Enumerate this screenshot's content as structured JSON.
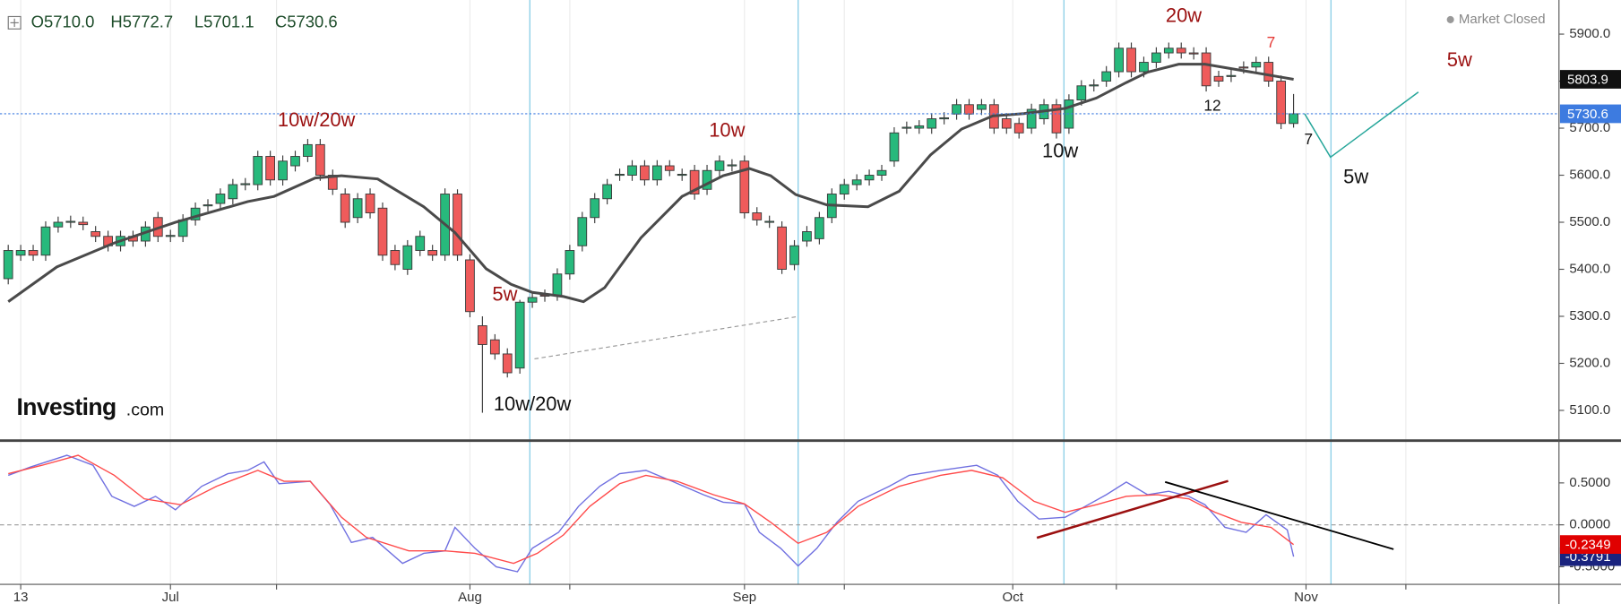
{
  "chart_data": [
    {
      "type": "candlestick",
      "header": [
        "O5710.0",
        "H5772.7",
        "L5701.1",
        "C5730.6"
      ],
      "status": "Market Closed",
      "watermark": [
        "Investing",
        ".com"
      ],
      "up_color": "#27b97c",
      "down_color": "#ef5b5b",
      "xlim": [
        -0.66,
        124.27
      ],
      "xticks": [
        {
          "value": 1,
          "label": "13"
        },
        {
          "value": 13,
          "label": "Jul"
        },
        {
          "value": 37,
          "label": "Aug"
        },
        {
          "value": 59,
          "label": "Sep"
        },
        {
          "value": 80.5,
          "label": "Oct"
        },
        {
          "value": 104,
          "label": "Nov"
        }
      ],
      "xminor": [
        21.5,
        45,
        67,
        88.8,
        112
      ],
      "vlines": [
        41.8,
        63.3,
        84.6,
        106
      ],
      "vline_color": "#8fd0e8",
      "ylim": [
        5038,
        5972.5
      ],
      "yticks": [
        {
          "value": 5100,
          "label": "5100.0"
        },
        {
          "value": 5200,
          "label": "5200.0"
        },
        {
          "value": 5300,
          "label": "5300.0"
        },
        {
          "value": 5400,
          "label": "5400.0"
        },
        {
          "value": 5500,
          "label": "5500.0"
        },
        {
          "value": 5600,
          "label": "5600.0"
        },
        {
          "value": 5700,
          "label": "5700.0"
        },
        {
          "value": 5800,
          "label": "5800.0"
        },
        {
          "value": 5900,
          "label": "5900.0"
        }
      ],
      "open": [
        5380,
        5430,
        5440,
        5430,
        5490,
        5500,
        5500,
        5480,
        5470,
        5450,
        5470,
        5460,
        5510,
        5470,
        5470,
        5505,
        5535,
        5540,
        5550,
        5580,
        5580,
        5640,
        5590,
        5620,
        5640,
        5665,
        5600,
        5560,
        5510,
        5560,
        5530,
        5440,
        5400,
        5440,
        5440,
        5430,
        5560,
        5420,
        5280,
        5250,
        5220,
        5190,
        5330,
        5345,
        5345,
        5390,
        5450,
        5510,
        5550,
        5600,
        5600,
        5620,
        5590,
        5620,
        5600,
        5610,
        5570,
        5610,
        5620,
        5630,
        5520,
        5500,
        5490,
        5410,
        5460,
        5465,
        5510,
        5560,
        5580,
        5590,
        5600,
        5630,
        5700,
        5700,
        5700,
        5720,
        5730,
        5750,
        5740,
        5750,
        5720,
        5710,
        5700,
        5720,
        5750,
        5700,
        5760,
        5790,
        5800,
        5820,
        5870,
        5820,
        5840,
        5860,
        5870,
        5860,
        5860,
        5810,
        5810,
        5830,
        5830,
        5840,
        5800,
        5710
      ],
      "high": [
        5452,
        5452,
        5452,
        5502,
        5512,
        5514,
        5512,
        5492,
        5482,
        5482,
        5482,
        5502,
        5522,
        5484,
        5517,
        5542,
        5549,
        5572,
        5592,
        5594,
        5652,
        5652,
        5642,
        5652,
        5677,
        5677,
        5612,
        5572,
        5562,
        5572,
        5542,
        5452,
        5462,
        5482,
        5452,
        5572,
        5570,
        5432,
        5300,
        5262,
        5232,
        5335,
        5352,
        5357,
        5402,
        5452,
        5522,
        5562,
        5592,
        5614,
        5632,
        5632,
        5632,
        5632,
        5614,
        5622,
        5622,
        5642,
        5634,
        5642,
        5532,
        5514,
        5502,
        5462,
        5492,
        5522,
        5572,
        5592,
        5602,
        5612,
        5622,
        5702,
        5714,
        5717,
        5732,
        5734,
        5762,
        5762,
        5762,
        5762,
        5732,
        5722,
        5752,
        5762,
        5762,
        5772,
        5802,
        5804,
        5832,
        5882,
        5882,
        5852,
        5872,
        5882,
        5882,
        5872,
        5872,
        5822,
        5824,
        5842,
        5852,
        5852,
        5812,
        5772.7
      ],
      "low": [
        5368,
        5418,
        5418,
        5418,
        5478,
        5488,
        5483,
        5458,
        5438,
        5438,
        5448,
        5448,
        5458,
        5458,
        5458,
        5493,
        5523,
        5528,
        5538,
        5568,
        5568,
        5578,
        5578,
        5608,
        5628,
        5588,
        5558,
        5488,
        5498,
        5508,
        5418,
        5398,
        5388,
        5428,
        5418,
        5418,
        5418,
        5298,
        5095,
        5208,
        5170,
        5178,
        5318,
        5331,
        5333,
        5378,
        5438,
        5498,
        5538,
        5588,
        5588,
        5578,
        5578,
        5598,
        5588,
        5548,
        5558,
        5598,
        5608,
        5508,
        5493,
        5488,
        5390,
        5398,
        5448,
        5453,
        5498,
        5548,
        5568,
        5578,
        5588,
        5618,
        5688,
        5688,
        5688,
        5708,
        5718,
        5718,
        5728,
        5688,
        5688,
        5678,
        5688,
        5708,
        5678,
        5688,
        5748,
        5778,
        5788,
        5808,
        5808,
        5808,
        5828,
        5848,
        5848,
        5846,
        5778,
        5788,
        5798,
        5816,
        5818,
        5788,
        5698,
        5701.1
      ],
      "close": [
        5440,
        5440,
        5430,
        5490,
        5500,
        5502,
        5495,
        5470,
        5450,
        5470,
        5460,
        5490,
        5470,
        5472,
        5505,
        5530,
        5537,
        5560,
        5580,
        5582,
        5640,
        5590,
        5630,
        5640,
        5665,
        5600,
        5570,
        5500,
        5550,
        5520,
        5430,
        5410,
        5450,
        5470,
        5430,
        5560,
        5430,
        5310,
        5240,
        5220,
        5180,
        5330,
        5340,
        5343,
        5390,
        5440,
        5510,
        5550,
        5580,
        5602,
        5620,
        5590,
        5620,
        5610,
        5602,
        5560,
        5610,
        5630,
        5622,
        5520,
        5505,
        5502,
        5400,
        5450,
        5480,
        5510,
        5560,
        5580,
        5590,
        5600,
        5610,
        5690,
        5702,
        5705,
        5720,
        5722,
        5750,
        5730,
        5750,
        5700,
        5700,
        5690,
        5740,
        5750,
        5690,
        5760,
        5790,
        5792,
        5820,
        5870,
        5820,
        5840,
        5860,
        5870,
        5860,
        5858,
        5790,
        5800,
        5812,
        5828,
        5840,
        5800,
        5710,
        5730.6
      ],
      "close_color": "#3d7be0",
      "moving_average": {
        "color": "#4a4a4a",
        "x": [
          0,
          3.9,
          8.5,
          13.4,
          19.2,
          21.3,
          24.6,
          26.7,
          29.6,
          33.3,
          35.8,
          38.3,
          40.3,
          42,
          44.5,
          46.1,
          47.8,
          50.7,
          54,
          57.3,
          59.4,
          61.1,
          63.1,
          65.6,
          68.9,
          71.4,
          73.9,
          76.4,
          78.9,
          81.4,
          84.7,
          87.2,
          89.6,
          91.3,
          93.8,
          95.9,
          98.8,
          102.1,
          103
        ],
        "values": [
          5331,
          5405,
          5456,
          5500,
          5544,
          5555,
          5594,
          5599,
          5592,
          5533,
          5478,
          5401,
          5368,
          5351,
          5342,
          5331,
          5361,
          5467,
          5555,
          5599,
          5614,
          5599,
          5559,
          5537,
          5533,
          5566,
          5643,
          5698,
          5726,
          5731,
          5742,
          5764,
          5797,
          5819,
          5836,
          5836,
          5823,
          5808,
          5803.9
        ]
      },
      "annotations": [
        {
          "text": "10w/20w",
          "at": 24.7,
          "price": 5715,
          "color": "#9b1010"
        },
        {
          "text": "5w",
          "at": 39.8,
          "price": 5344,
          "color": "#9b1010"
        },
        {
          "text": "10w/20w",
          "at": 42,
          "price": 5111,
          "color": "#111111"
        },
        {
          "text": "10w",
          "at": 57.6,
          "price": 5693,
          "color": "#9b1010"
        },
        {
          "text": "20w",
          "at": 94.2,
          "price": 5937,
          "color": "#9b1010"
        },
        {
          "text": "7",
          "at": 101.2,
          "price": 5880,
          "color": "#e53935"
        },
        {
          "text": "12",
          "at": 96.5,
          "price": 5746,
          "color": "#111111"
        },
        {
          "text": "7",
          "at": 104.2,
          "price": 5674,
          "color": "#111111"
        },
        {
          "text": "10w",
          "at": 84.3,
          "price": 5649,
          "color": "#111111"
        },
        {
          "text": "5w",
          "at": 108,
          "price": 5594,
          "color": "#111111"
        },
        {
          "text": "5w",
          "at": 116.3,
          "price": 5843,
          "color": "#9b1010"
        }
      ]
    },
    {
      "type": "line",
      "ylim": [
        -0.71,
        0.98
      ],
      "yticks": [
        {
          "value": 0.5,
          "label": "0.5000"
        },
        {
          "value": 0,
          "label": "0.0000"
        },
        {
          "value": -0.5,
          "label": "-0.5000"
        }
      ],
      "hline": 0,
      "series": [
        {
          "color": "#6f6fe0",
          "box_color": "#1a237e",
          "x": [
            0,
            1.8,
            4.7,
            6.8,
            8.3,
            10.1,
            11.8,
            13.4,
            15.5,
            17.6,
            19.2,
            20.5,
            21.7,
            24.2,
            25.8,
            27.5,
            29.2,
            31.6,
            33.3,
            35,
            35.8,
            37.4,
            39.1,
            40.8,
            42,
            44.1,
            45.7,
            47.4,
            49,
            51.1,
            53.2,
            55.7,
            57.3,
            59,
            60.2,
            61.9,
            63.3,
            64.8,
            66.4,
            68.1,
            70.6,
            72.2,
            74.7,
            77.6,
            79.3,
            80.9,
            82.6,
            84.7,
            86.3,
            88,
            89.6,
            91.3,
            93,
            94.6,
            95.9,
            97.5,
            99.2,
            100.8,
            102.5,
            103
          ],
          "values": [
            0.59,
            0.69,
            0.83,
            0.71,
            0.34,
            0.22,
            0.34,
            0.18,
            0.46,
            0.61,
            0.65,
            0.75,
            0.49,
            0.52,
            0.24,
            -0.21,
            -0.15,
            -0.46,
            -0.34,
            -0.31,
            -0.03,
            -0.28,
            -0.5,
            -0.56,
            -0.28,
            -0.09,
            0.22,
            0.46,
            0.61,
            0.65,
            0.52,
            0.36,
            0.27,
            0.25,
            -0.09,
            -0.28,
            -0.49,
            -0.28,
            0.03,
            0.28,
            0.46,
            0.59,
            0.65,
            0.71,
            0.59,
            0.28,
            0.07,
            0.09,
            0.22,
            0.36,
            0.51,
            0.36,
            0.4,
            0.34,
            0.24,
            -0.03,
            -0.09,
            0.12,
            -0.06,
            -0.3791
          ]
        },
        {
          "color": "#ff4a4a",
          "box_color": "#e00000",
          "x": [
            0,
            2.7,
            5.6,
            8.5,
            10.9,
            13.8,
            16.7,
            20,
            22.1,
            24.2,
            26.7,
            28.7,
            32.1,
            35,
            37.4,
            40.5,
            42.4,
            44.5,
            46.6,
            49,
            51.1,
            53.6,
            56.5,
            59,
            61.1,
            63.3,
            65.6,
            68.1,
            71.4,
            74.7,
            77.2,
            79.7,
            82.2,
            84.7,
            87.2,
            89.6,
            92.1,
            94.6,
            96.7,
            98.8,
            101.2,
            103
          ],
          "values": [
            0.61,
            0.71,
            0.83,
            0.59,
            0.31,
            0.24,
            0.46,
            0.65,
            0.52,
            0.52,
            0.09,
            -0.15,
            -0.31,
            -0.31,
            -0.34,
            -0.46,
            -0.34,
            -0.12,
            0.22,
            0.49,
            0.59,
            0.52,
            0.36,
            0.25,
            0.03,
            -0.22,
            -0.09,
            0.22,
            0.46,
            0.59,
            0.65,
            0.56,
            0.28,
            0.15,
            0.24,
            0.34,
            0.36,
            0.31,
            0.15,
            0.03,
            -0.03,
            -0.2349
          ]
        }
      ]
    }
  ]
}
